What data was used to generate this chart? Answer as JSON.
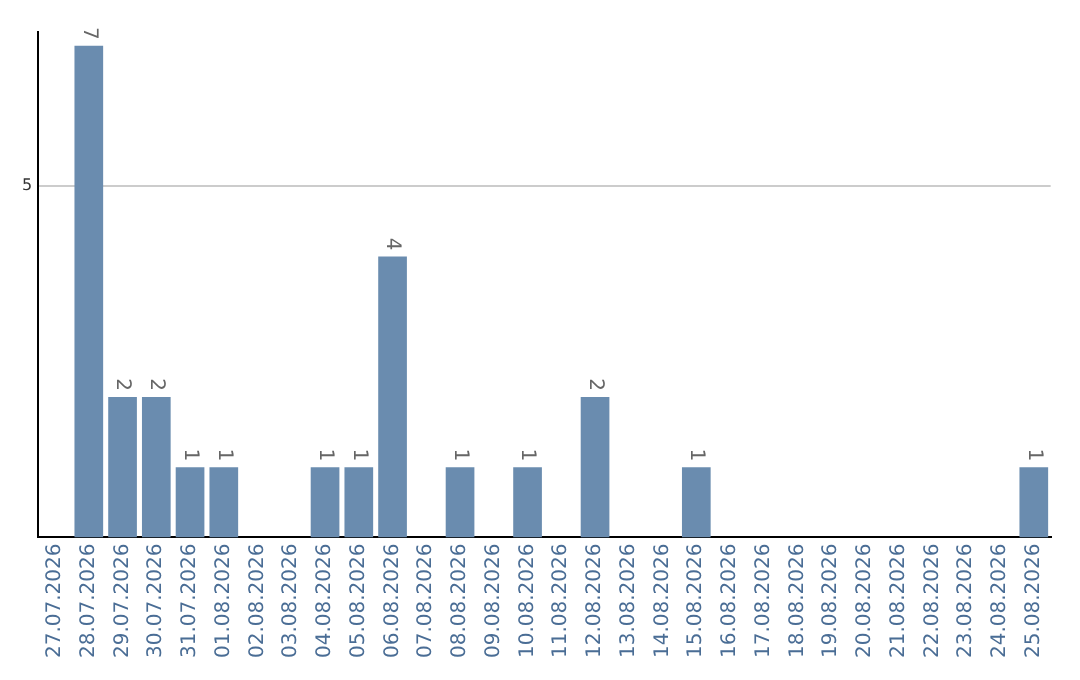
{
  "chart_data": {
    "type": "bar",
    "categories": [
      "27.07.2026",
      "28.07.2026",
      "29.07.2026",
      "30.07.2026",
      "31.07.2026",
      "01.08.2026",
      "02.08.2026",
      "03.08.2026",
      "04.08.2026",
      "05.08.2026",
      "06.08.2026",
      "07.08.2026",
      "08.08.2026",
      "09.08.2026",
      "10.08.2026",
      "11.08.2026",
      "12.08.2026",
      "13.08.2026",
      "14.08.2026",
      "15.08.2026",
      "16.08.2026",
      "17.08.2026",
      "18.08.2026",
      "19.08.2026",
      "20.08.2026",
      "21.08.2026",
      "22.08.2026",
      "23.08.2026",
      "24.08.2026",
      "25.08.2026"
    ],
    "values": [
      0,
      7,
      2,
      2,
      1,
      1,
      0,
      0,
      1,
      1,
      4,
      0,
      1,
      0,
      1,
      0,
      2,
      0,
      0,
      1,
      0,
      0,
      0,
      0,
      0,
      0,
      0,
      0,
      0,
      1
    ],
    "value_labels": [
      null,
      "7",
      "2",
      "2",
      "1",
      "1",
      null,
      null,
      "1",
      "1",
      "4",
      null,
      "1",
      null,
      "1",
      null,
      "2",
      null,
      null,
      "1",
      null,
      null,
      null,
      null,
      null,
      null,
      null,
      null,
      null,
      "1"
    ],
    "color": "#6a8caf",
    "ylim": [
      0,
      7.2
    ],
    "yticks": [
      5
    ],
    "grid": "y"
  }
}
